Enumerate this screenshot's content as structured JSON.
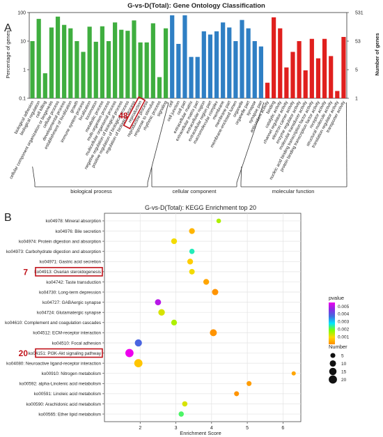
{
  "panel_labels": {
    "a": "A",
    "b": "B"
  },
  "highlights": {
    "go": "48",
    "kegg_top": "7",
    "kegg_bottom": "20"
  },
  "colors": {
    "bp": "#3fae3f",
    "cc": "#2f7fc4",
    "mf": "#e0201e",
    "highlight": "#c0121a",
    "gradient": [
      "#ff8c00",
      "#ffd700",
      "#7fff00",
      "#00e5ff",
      "#3f6fe0",
      "#8a2be2",
      "#ee00ee"
    ]
  },
  "chart_data": [
    {
      "type": "bar",
      "title": "G-vs-D(Total): Gene Ontology Classification",
      "ylabel": "Percentage of genes",
      "y2label": "Number of genes",
      "yscale": "log",
      "ylim": [
        0.1,
        100
      ],
      "yticks": [
        "0.1",
        "1",
        "10",
        "100"
      ],
      "y2ticks": [
        "1",
        "5",
        "53",
        "531"
      ],
      "categories": [
        "biological adhesion",
        "biological regulation",
        "cell killing",
        "cellular component organization or biogenesis",
        "cellular process",
        "developmental process",
        "establishment of localization",
        "growth",
        "immune system process",
        "localization",
        "locomotion",
        "metabolic process",
        "multi-organism process",
        "multicellular organismal process",
        "negative regulation of biological process",
        "positive regulation of biological process",
        "regulation of biological process",
        "reproduction",
        "reproductive process",
        "response to stimulus",
        "rhythmic process",
        "signaling",
        "cell",
        "cell junction",
        "cell part",
        "extracellular matrix",
        "extracellular matrix part",
        "extracellular region",
        "extracellular region part",
        "macromolecular complex",
        "membrane",
        "membrane part",
        "membrane-enclosed lumen",
        "organelle",
        "organelle part",
        "synapse",
        "synapse part",
        "antioxidant activity",
        "binding",
        "catalytic activity",
        "channel regulator activity",
        "electron carrier activity",
        "enzyme regulator activity",
        "molecular transducer activity",
        "nucleic acid binding transcription factor activity",
        "protein binding transcription factor activity",
        "receptor activity",
        "structural molecule activity",
        "translation regulator activity",
        "transporter activity"
      ],
      "values": [
        10,
        60,
        0.75,
        30,
        72,
        37,
        28,
        10,
        4.2,
        32,
        9.5,
        33,
        10,
        45,
        25,
        23,
        53,
        9.0,
        9.0,
        42,
        0.55,
        28,
        80,
        8,
        80,
        2.8,
        2.8,
        22,
        17,
        22,
        45,
        30,
        10,
        55,
        28,
        10,
        6.5,
        0.35,
        68,
        28,
        1.2,
        4.2,
        10,
        0.95,
        12,
        2.5,
        12,
        3.0,
        0.18,
        14
      ],
      "series_colors": [
        "bp",
        "cc",
        "mf"
      ],
      "groups": [
        {
          "name": "biological process",
          "count": 22
        },
        {
          "name": "cellular component",
          "count": 15
        },
        {
          "name": "molecular function",
          "count": 13
        }
      ],
      "highlight_category": "reproduction",
      "highlight_label": "48"
    },
    {
      "type": "scatter",
      "title": "G-vs-D(Total): KEGG Enrichment top 20",
      "xlabel": "Enrichment Score",
      "xlim": [
        1.0,
        6.5
      ],
      "xticks": [
        2,
        3,
        4,
        5,
        6
      ],
      "categories": [
        "ko04978: Mineral absorption",
        "ko04976: Bile secretion",
        "ko04974: Protein digestion and absorption",
        "ko04973: Carbohydrate digestion and absorption",
        "ko04971: Gastric acid secretion",
        "ko04913: Ovarian steroidogenesis",
        "ko04742: Taste transduction",
        "ko04730: Long-term depression",
        "ko04727: GABAergic synapse",
        "ko04724: Glutamatergic synapse",
        "ko04610: Complement and coagulation cascades",
        "ko04512: ECM-receptor interaction",
        "ko04510: Focal adhesion",
        "ko04151: PI3K-Akt signaling pathway",
        "ko04080: Neuroactive ligand-receptor interaction",
        "ko00910: Nitrogen metabolism",
        "ko00592: alpha-Linolenic acid metabolism",
        "ko00591: Linoleic acid metabolism",
        "ko00590: Arachidonic acid metabolism",
        "ko00565: Ether lipid metabolism"
      ],
      "points": [
        {
          "x": 4.2,
          "count": 4,
          "pvalue": 0.0015
        },
        {
          "x": 3.45,
          "count": 8,
          "pvalue": 0.0005
        },
        {
          "x": 2.95,
          "count": 8,
          "pvalue": 0.001
        },
        {
          "x": 3.45,
          "count": 6,
          "pvalue": 0.0025
        },
        {
          "x": 3.4,
          "count": 8,
          "pvalue": 0.0008
        },
        {
          "x": 3.45,
          "count": 7,
          "pvalue": 0.001
        },
        {
          "x": 3.85,
          "count": 8,
          "pvalue": 0.0003
        },
        {
          "x": 4.1,
          "count": 10,
          "pvalue": 0.0001
        },
        {
          "x": 2.5,
          "count": 9,
          "pvalue": 0.005
        },
        {
          "x": 2.6,
          "count": 11,
          "pvalue": 0.0012
        },
        {
          "x": 2.95,
          "count": 8,
          "pvalue": 0.0015
        },
        {
          "x": 4.05,
          "count": 13,
          "pvalue": 0.0001
        },
        {
          "x": 1.95,
          "count": 14,
          "pvalue": 0.0038
        },
        {
          "x": 1.7,
          "count": 20,
          "pvalue": 0.0055
        },
        {
          "x": 1.95,
          "count": 20,
          "pvalue": 0.0007
        },
        {
          "x": 6.3,
          "count": 3,
          "pvalue": 0.0003
        },
        {
          "x": 5.05,
          "count": 5,
          "pvalue": 0.0002
        },
        {
          "x": 4.7,
          "count": 5,
          "pvalue": 0.0001
        },
        {
          "x": 3.25,
          "count": 6,
          "pvalue": 0.0012
        },
        {
          "x": 3.15,
          "count": 6,
          "pvalue": 0.0022
        }
      ],
      "legend_color": {
        "title": "pvalue",
        "ticks": [
          "0.005",
          "0.004",
          "0.003",
          "0.002",
          "0.001"
        ],
        "range": [
          0.0,
          0.0055
        ]
      },
      "legend_size": {
        "title": "Number",
        "values": [
          5,
          10,
          15,
          20
        ]
      },
      "grid": true,
      "legend_placement": "right",
      "highlighted": [
        {
          "category": "ko04913: Ovarian steroidogenesis",
          "label": "7"
        },
        {
          "category": "ko04151: PI3K-Akt signaling pathway",
          "label": "20"
        }
      ]
    }
  ]
}
